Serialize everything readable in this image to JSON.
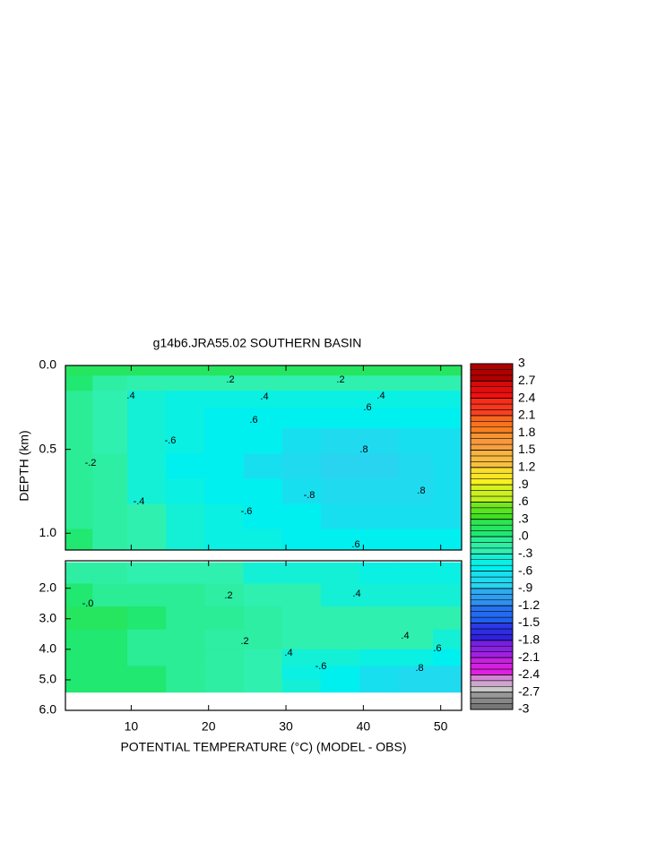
{
  "chart_data": {
    "type": "contour",
    "title": "g14b6.JRA55.02 SOUTHERN BASIN",
    "x_label": "POTENTIAL TEMPERATURE (°C) (MODEL - OBS)",
    "y_label": "DEPTH (km)",
    "xlim": [
      1.5,
      52.7
    ],
    "xticks": [
      10,
      20,
      30,
      40,
      50
    ],
    "x": [
      3,
      7,
      12,
      17,
      22,
      27,
      32,
      37,
      42,
      47,
      51
    ],
    "panels": [
      {
        "ylim": [
          0,
          1.1
        ],
        "yticks": [
          {
            "value": 0,
            "label": "0.0"
          },
          {
            "value": 0.5,
            "label": "0.5"
          },
          {
            "value": 1,
            "label": "1.0"
          }
        ],
        "depth": [
          0.02,
          0.1,
          0.2,
          0.3,
          0.45,
          0.6,
          0.75,
          0.9,
          1.05
        ],
        "values": [
          [
            0.1,
            0.1,
            0.1,
            0.1,
            0.1,
            0.1,
            0.1,
            0.1,
            0.1,
            0.1,
            0.1
          ],
          [
            0.0,
            -0.2,
            -0.3,
            -0.3,
            -0.3,
            -0.3,
            -0.3,
            -0.3,
            -0.3,
            -0.3,
            -0.3
          ],
          [
            -0.1,
            -0.3,
            -0.4,
            -0.5,
            -0.5,
            -0.5,
            -0.5,
            -0.5,
            -0.5,
            -0.5,
            -0.5
          ],
          [
            -0.1,
            -0.3,
            -0.4,
            -0.5,
            -0.6,
            -0.6,
            -0.6,
            -0.6,
            -0.6,
            -0.6,
            -0.6
          ],
          [
            -0.1,
            -0.3,
            -0.4,
            -0.5,
            -0.6,
            -0.6,
            -0.7,
            -0.8,
            -0.8,
            -0.7,
            -0.7
          ],
          [
            -0.1,
            -0.2,
            -0.4,
            -0.6,
            -0.6,
            -0.7,
            -0.8,
            -0.9,
            -0.9,
            -0.8,
            -0.7
          ],
          [
            -0.1,
            -0.2,
            -0.4,
            -0.5,
            -0.6,
            -0.6,
            -0.7,
            -0.8,
            -0.8,
            -0.8,
            -0.7
          ],
          [
            -0.1,
            -0.2,
            -0.3,
            -0.4,
            -0.5,
            -0.6,
            -0.6,
            -0.7,
            -0.7,
            -0.7,
            -0.7
          ],
          [
            0.0,
            -0.2,
            -0.3,
            -0.4,
            -0.5,
            -0.5,
            -0.6,
            -0.6,
            -0.6,
            -0.6,
            -0.6
          ]
        ]
      },
      {
        "ylim": [
          1.1,
          6
        ],
        "yticks": [
          {
            "value": 2,
            "label": "2.0"
          },
          {
            "value": 3,
            "label": "3.0"
          },
          {
            "value": 4,
            "label": "4.0"
          },
          {
            "value": 5,
            "label": "5.0"
          },
          {
            "value": 6,
            "label": "6.0"
          }
        ],
        "depth": [
          1.5,
          2.2,
          3,
          3.7,
          4.3,
          4.8,
          5.2
        ],
        "values": [
          [
            -0.2,
            -0.2,
            -0.3,
            -0.3,
            -0.3,
            -0.4,
            -0.4,
            -0.4,
            -0.5,
            -0.5,
            -0.5
          ],
          [
            0.0,
            -0.1,
            -0.1,
            -0.1,
            -0.2,
            -0.3,
            -0.3,
            -0.4,
            -0.4,
            -0.4,
            -0.4
          ],
          [
            0.1,
            0.1,
            0.0,
            -0.1,
            -0.1,
            -0.2,
            -0.3,
            -0.3,
            -0.3,
            -0.3,
            -0.3
          ],
          [
            0.0,
            0.0,
            -0.1,
            -0.1,
            -0.2,
            -0.2,
            -0.3,
            -0.3,
            -0.3,
            -0.3,
            -0.4
          ],
          [
            0.0,
            0.0,
            -0.1,
            -0.1,
            -0.2,
            -0.3,
            -0.4,
            -0.4,
            -0.5,
            -0.5,
            -0.6
          ],
          [
            0.0,
            0.0,
            0.0,
            -0.1,
            -0.2,
            -0.3,
            -0.5,
            -0.6,
            -0.7,
            -0.8,
            -0.8
          ],
          [
            0.0,
            0.0,
            0.0,
            -0.1,
            -0.2,
            -0.3,
            -0.4,
            -0.6,
            -0.7,
            -0.8,
            -0.8
          ]
        ]
      }
    ],
    "contour_labels": [
      ".8",
      "-.8",
      ".8",
      "-.6",
      ".6",
      ".6",
      "-.6",
      ".6",
      "-.4",
      ".4",
      ".4",
      ".4",
      "-.2",
      ".2",
      ".2",
      "-.0",
      ".2",
      ".4",
      ".2",
      ".4",
      "-.6",
      ".4",
      ".6",
      ".8"
    ],
    "colorbar": {
      "lim": [
        -3,
        3
      ],
      "contour_interval": 0.1,
      "ticks": [
        3,
        2.7,
        2.4,
        2.1,
        1.8,
        1.5,
        1.2,
        {
          "value": 0.9,
          "label": ".9"
        },
        {
          "value": 0.6,
          "label": ".6"
        },
        {
          "value": 0.3,
          "label": ".3"
        },
        {
          "value": 0,
          "label": ".0"
        },
        {
          "value": -0.3,
          "label": "-.3"
        },
        {
          "value": -0.6,
          "label": "-.6"
        },
        {
          "value": -0.9,
          "label": "-.9"
        },
        -1.2,
        -1.5,
        -1.8,
        -2.1,
        -2.4,
        -2.7,
        -3
      ],
      "colors": [
        "#777777",
        "#c8c8c8",
        "#e020e0",
        "#a020e0",
        "#3020e0",
        "#2060f0",
        "#3090f0",
        "#28d4f0",
        "#00f0f0",
        "#30f0b0",
        "#20e870",
        "#40e020",
        "#c0f020",
        "#f8f020",
        "#f8c040",
        "#f8a040",
        "#f88020",
        "#f84020",
        "#f01010",
        "#b00000"
      ]
    }
  }
}
